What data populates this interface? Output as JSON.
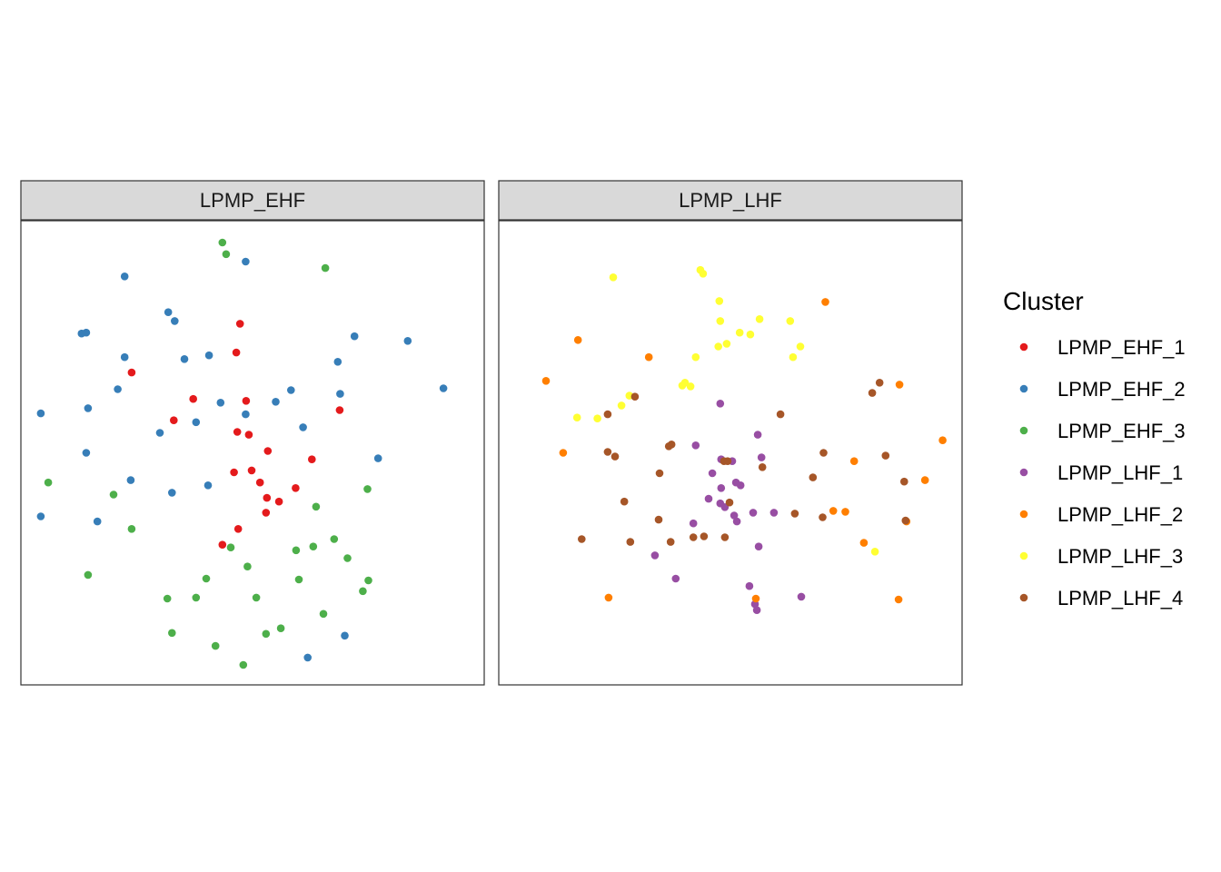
{
  "chart_data": {
    "type": "scatter",
    "facets": [
      "LPMP_EHF",
      "LPMP_LHF"
    ],
    "xlim": [
      0,
      100
    ],
    "ylim": [
      0,
      100
    ],
    "axes_visible": false,
    "grid": false,
    "legend": {
      "title": "Cluster",
      "position": "right",
      "entries": [
        {
          "label": "LPMP_EHF_1",
          "color": "#E41A1C"
        },
        {
          "label": "LPMP_EHF_2",
          "color": "#377EB8"
        },
        {
          "label": "LPMP_EHF_3",
          "color": "#4DAF4A"
        },
        {
          "label": "LPMP_LHF_1",
          "color": "#984EA3"
        },
        {
          "label": "LPMP_LHF_2",
          "color": "#FF7F00"
        },
        {
          "label": "LPMP_LHF_3",
          "color": "#FFFF33"
        },
        {
          "label": "LPMP_LHF_4",
          "color": "#A65628"
        }
      ]
    },
    "series": [
      {
        "name": "LPMP_EHF_1",
        "facet": "LPMP_EHF",
        "color": "#E41A1C",
        "points": [
          [
            47.3,
            77.8
          ],
          [
            46.5,
            71.6
          ],
          [
            23.9,
            67.3
          ],
          [
            37.2,
            61.6
          ],
          [
            48.6,
            61.2
          ],
          [
            33.0,
            57.0
          ],
          [
            68.8,
            59.2
          ],
          [
            46.7,
            54.5
          ],
          [
            49.2,
            53.9
          ],
          [
            53.3,
            50.4
          ],
          [
            62.8,
            48.6
          ],
          [
            46.0,
            45.8
          ],
          [
            49.8,
            46.2
          ],
          [
            51.6,
            43.6
          ],
          [
            59.3,
            42.4
          ],
          [
            53.1,
            40.3
          ],
          [
            55.7,
            39.5
          ],
          [
            52.9,
            37.1
          ],
          [
            46.9,
            33.6
          ],
          [
            43.5,
            30.2
          ]
        ]
      },
      {
        "name": "LPMP_EHF_2",
        "facet": "LPMP_EHF",
        "color": "#377EB8",
        "points": [
          [
            48.5,
            91.2
          ],
          [
            22.4,
            88.0
          ],
          [
            31.8,
            80.3
          ],
          [
            33.2,
            78.4
          ],
          [
            13.1,
            75.7
          ],
          [
            14.1,
            75.9
          ],
          [
            72.0,
            75.1
          ],
          [
            83.5,
            74.1
          ],
          [
            22.4,
            70.6
          ],
          [
            35.3,
            70.2
          ],
          [
            40.6,
            71.0
          ],
          [
            68.4,
            69.6
          ],
          [
            20.9,
            63.7
          ],
          [
            58.3,
            63.5
          ],
          [
            91.2,
            63.9
          ],
          [
            43.1,
            60.8
          ],
          [
            55.0,
            61.0
          ],
          [
            68.9,
            62.7
          ],
          [
            4.3,
            58.5
          ],
          [
            14.5,
            59.6
          ],
          [
            48.5,
            58.3
          ],
          [
            37.8,
            56.6
          ],
          [
            60.9,
            55.5
          ],
          [
            30.0,
            54.3
          ],
          [
            14.1,
            50.0
          ],
          [
            77.1,
            48.8
          ],
          [
            23.7,
            44.1
          ],
          [
            40.4,
            43.0
          ],
          [
            32.6,
            41.4
          ],
          [
            4.3,
            36.3
          ],
          [
            16.5,
            35.2
          ],
          [
            61.9,
            5.9
          ],
          [
            69.9,
            10.6
          ]
        ]
      },
      {
        "name": "LPMP_EHF_3",
        "facet": "LPMP_EHF",
        "color": "#4DAF4A",
        "points": [
          [
            43.5,
            95.3
          ],
          [
            44.3,
            92.8
          ],
          [
            65.7,
            89.8
          ],
          [
            5.9,
            43.6
          ],
          [
            20.0,
            41.0
          ],
          [
            74.8,
            42.2
          ],
          [
            63.7,
            38.4
          ],
          [
            23.9,
            33.6
          ],
          [
            45.3,
            29.6
          ],
          [
            59.4,
            29.0
          ],
          [
            63.1,
            29.8
          ],
          [
            67.6,
            31.4
          ],
          [
            70.5,
            27.3
          ],
          [
            48.9,
            25.5
          ],
          [
            14.5,
            23.7
          ],
          [
            40.0,
            22.9
          ],
          [
            60.0,
            22.7
          ],
          [
            75.0,
            22.5
          ],
          [
            73.8,
            20.2
          ],
          [
            31.6,
            18.6
          ],
          [
            37.8,
            18.8
          ],
          [
            50.8,
            18.8
          ],
          [
            65.3,
            15.3
          ],
          [
            32.6,
            11.2
          ],
          [
            56.1,
            12.2
          ],
          [
            52.9,
            11.0
          ],
          [
            42.0,
            8.4
          ],
          [
            48.0,
            4.3
          ]
        ]
      },
      {
        "name": "LPMP_LHF_1",
        "facet": "LPMP_LHF",
        "color": "#984EA3",
        "points": [
          [
            47.8,
            60.6
          ],
          [
            55.9,
            53.9
          ],
          [
            42.5,
            51.6
          ],
          [
            48.0,
            48.6
          ],
          [
            50.4,
            48.2
          ],
          [
            56.7,
            49.0
          ],
          [
            46.1,
            45.6
          ],
          [
            51.2,
            43.6
          ],
          [
            52.2,
            43.0
          ],
          [
            48.0,
            42.4
          ],
          [
            45.3,
            40.1
          ],
          [
            47.8,
            39.1
          ],
          [
            48.8,
            38.3
          ],
          [
            50.8,
            36.5
          ],
          [
            54.9,
            37.1
          ],
          [
            59.4,
            37.1
          ],
          [
            51.4,
            35.2
          ],
          [
            42.0,
            34.8
          ],
          [
            56.1,
            29.8
          ],
          [
            33.7,
            27.9
          ],
          [
            38.2,
            22.9
          ],
          [
            54.1,
            21.3
          ],
          [
            55.3,
            17.4
          ],
          [
            65.3,
            19.0
          ],
          [
            55.7,
            16.1
          ]
        ]
      },
      {
        "name": "LPMP_LHF_2",
        "facet": "LPMP_LHF",
        "color": "#FF7F00",
        "points": [
          [
            70.5,
            82.5
          ],
          [
            17.1,
            74.3
          ],
          [
            32.4,
            70.6
          ],
          [
            10.2,
            65.5
          ],
          [
            86.5,
            64.7
          ],
          [
            95.8,
            52.7
          ],
          [
            13.9,
            50.0
          ],
          [
            76.7,
            48.2
          ],
          [
            92.0,
            44.1
          ],
          [
            72.2,
            37.5
          ],
          [
            74.8,
            37.3
          ],
          [
            88.0,
            35.2
          ],
          [
            78.8,
            30.6
          ],
          [
            23.7,
            18.8
          ],
          [
            55.5,
            18.6
          ],
          [
            86.3,
            18.4
          ]
        ]
      },
      {
        "name": "LPMP_LHF_3",
        "facet": "LPMP_LHF",
        "color": "#FFFF33",
        "points": [
          [
            43.5,
            89.4
          ],
          [
            44.1,
            88.6
          ],
          [
            24.7,
            87.8
          ],
          [
            47.6,
            82.7
          ],
          [
            47.8,
            78.4
          ],
          [
            56.3,
            78.8
          ],
          [
            62.9,
            78.4
          ],
          [
            52.0,
            75.9
          ],
          [
            54.3,
            75.5
          ],
          [
            47.4,
            72.9
          ],
          [
            49.2,
            73.5
          ],
          [
            65.1,
            72.9
          ],
          [
            42.5,
            70.6
          ],
          [
            63.5,
            70.6
          ],
          [
            39.6,
            64.5
          ],
          [
            40.2,
            65.1
          ],
          [
            41.4,
            64.3
          ],
          [
            28.2,
            62.3
          ],
          [
            26.5,
            60.2
          ],
          [
            16.9,
            57.6
          ],
          [
            21.3,
            57.4
          ],
          [
            81.2,
            28.7
          ]
        ]
      },
      {
        "name": "LPMP_LHF_4",
        "facet": "LPMP_LHF",
        "color": "#A65628",
        "points": [
          [
            82.2,
            65.1
          ],
          [
            80.6,
            62.9
          ],
          [
            29.4,
            62.1
          ],
          [
            23.5,
            58.3
          ],
          [
            60.8,
            58.3
          ],
          [
            36.7,
            51.4
          ],
          [
            37.3,
            51.8
          ],
          [
            23.5,
            50.2
          ],
          [
            25.1,
            49.2
          ],
          [
            70.1,
            50.0
          ],
          [
            83.5,
            49.4
          ],
          [
            48.6,
            48.2
          ],
          [
            49.4,
            48.2
          ],
          [
            56.9,
            46.9
          ],
          [
            34.7,
            45.6
          ],
          [
            67.8,
            44.7
          ],
          [
            87.5,
            43.8
          ],
          [
            27.1,
            39.5
          ],
          [
            49.8,
            39.3
          ],
          [
            34.5,
            35.6
          ],
          [
            63.9,
            36.9
          ],
          [
            69.9,
            36.1
          ],
          [
            87.8,
            35.4
          ],
          [
            17.9,
            31.4
          ],
          [
            42.0,
            31.8
          ],
          [
            44.3,
            32.0
          ],
          [
            28.4,
            30.8
          ],
          [
            37.1,
            30.8
          ],
          [
            48.8,
            31.8
          ]
        ]
      }
    ]
  }
}
